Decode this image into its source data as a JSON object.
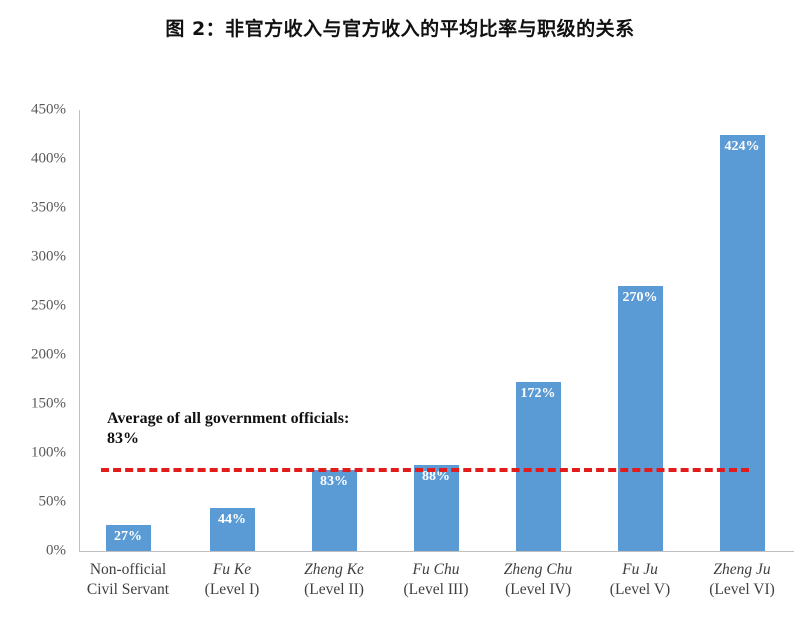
{
  "title": "图 2：非官方收入与官方收入的平均比率与职级的关系",
  "chart_data": {
    "type": "bar",
    "title": "图 2：非官方收入与官方收入的平均比率与职级的关系",
    "xlabel": "",
    "ylabel": "",
    "ylim": [
      0,
      450
    ],
    "yticks": [
      "0%",
      "50%",
      "100%",
      "150%",
      "200%",
      "250%",
      "300%",
      "350%",
      "400%",
      "450%"
    ],
    "grid": false,
    "legend": null,
    "categories": [
      "Non-official Civil Servant",
      "Fu Ke (Level I)",
      "Zheng Ke (Level II)",
      "Fu Chu (Level III)",
      "Zheng Chu (Level IV)",
      "Fu Ju (Level V)",
      "Zheng Ju (Level VI)"
    ],
    "values": [
      27,
      44,
      83,
      88,
      172,
      270,
      424
    ],
    "value_labels": [
      "27%",
      "44%",
      "83%",
      "88%",
      "172%",
      "270%",
      "424%"
    ],
    "bar_color": "#5b9bd5",
    "reference_line": {
      "value": 83,
      "style": "dashed",
      "color": "#e21b1b",
      "annotation": "Average of all government officials: 83%"
    }
  },
  "axis": {
    "yticks": [
      "0%",
      "50%",
      "100%",
      "150%",
      "200%",
      "250%",
      "300%",
      "350%",
      "400%",
      "450%"
    ]
  },
  "bars": [
    {
      "line1": "Non-official",
      "line2": "Civil Servant",
      "italic": false,
      "value": 27,
      "label": "27%"
    },
    {
      "line1": "Fu Ke",
      "line2": "(Level I)",
      "italic": true,
      "value": 44,
      "label": "44%"
    },
    {
      "line1": "Zheng Ke",
      "line2": "(Level II)",
      "italic": true,
      "value": 83,
      "label": "83%"
    },
    {
      "line1": "Fu Chu",
      "line2": "(Level III)",
      "italic": true,
      "value": 88,
      "label": "88%"
    },
    {
      "line1": "Zheng Chu",
      "line2": "(Level IV)",
      "italic": true,
      "value": 172,
      "label": "172%"
    },
    {
      "line1": "Fu Ju",
      "line2": "(Level V)",
      "italic": true,
      "value": 270,
      "label": "270%"
    },
    {
      "line1": "Zheng Ju",
      "line2": "(Level VI)",
      "italic": true,
      "value": 424,
      "label": "424%"
    }
  ],
  "annotation": {
    "line1": "Average of all government officials:",
    "line2": "83%"
  }
}
